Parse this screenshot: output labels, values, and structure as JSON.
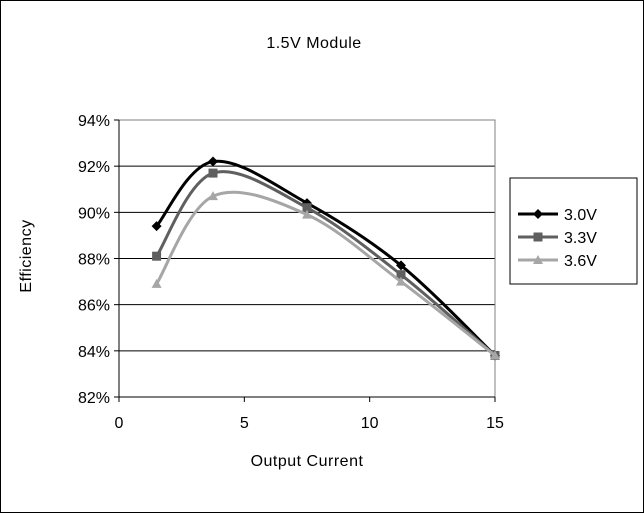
{
  "chart_data": {
    "type": "line",
    "title": "1.5V Module",
    "xlabel": "Output Current",
    "ylabel": "Efficiency",
    "xlim": [
      0,
      15
    ],
    "ylim": [
      82,
      94
    ],
    "xticks": [
      0,
      5,
      10,
      15
    ],
    "yticks": [
      82,
      84,
      86,
      88,
      90,
      92,
      94
    ],
    "ytick_suffix": "%",
    "grid": "horizontal",
    "legend_position": "right",
    "series": [
      {
        "name": "3.0V",
        "color": "#000000",
        "marker": "diamond",
        "x": [
          1.5,
          3.75,
          7.5,
          11.25,
          15
        ],
        "y": [
          89.4,
          92.2,
          90.4,
          87.7,
          83.8
        ]
      },
      {
        "name": "3.3V",
        "color": "#5f5f5f",
        "marker": "square",
        "x": [
          1.5,
          3.75,
          7.5,
          11.25,
          15
        ],
        "y": [
          88.1,
          91.7,
          90.2,
          87.3,
          83.8
        ]
      },
      {
        "name": "3.6V",
        "color": "#a6a6a6",
        "marker": "triangle",
        "x": [
          1.5,
          3.75,
          7.5,
          11.25,
          15
        ],
        "y": [
          86.9,
          90.7,
          89.9,
          87.0,
          83.8
        ]
      }
    ]
  }
}
